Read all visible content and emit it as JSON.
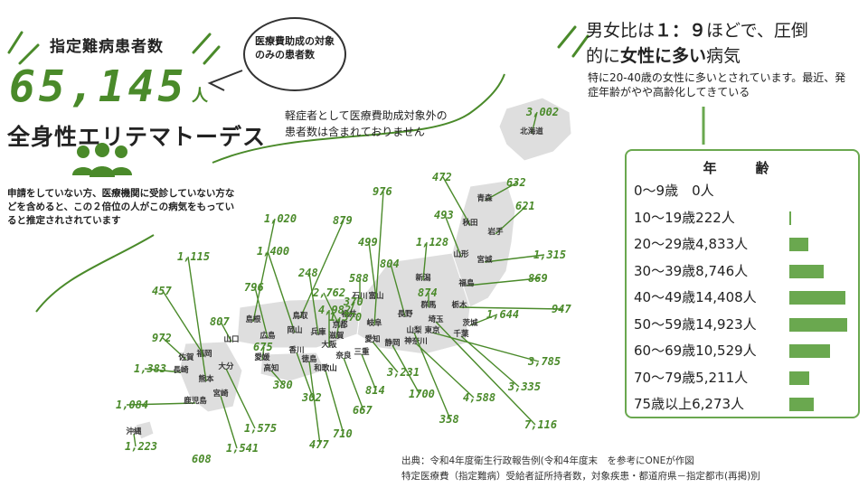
{
  "headline": {
    "patients_label": "指定難病患者数",
    "patients_number": "65,145",
    "patients_unit": "人",
    "disease_name": "全身性エリテマトーデス",
    "bubble": "医療費助成の対象のみの患者数",
    "mild_note": "軽症者として医療費助成対象外の患者数は含まれておりません",
    "unapplied_note_1": "申請をしていない方、医療機関に受診していない方などを含めると",
    "unapplied_note_em": "、この２倍位",
    "unapplied_note_2": "の人がこの病気をもっていると推定されされています",
    "people_icon": "people-icon"
  },
  "ratio": {
    "line1_a": "男女比は",
    "line1_b": "１：９",
    "line1_c": "ほどで、圧倒",
    "line2_a": "的に",
    "line2_b": "女性に多い",
    "line2_c": "病気",
    "sub": "特に20-40歳の女性に多いとされています。最近、発症年齢がやや高齢化してきている"
  },
  "source": {
    "line1": "出典：令和4年度衛生行政報告例(令和4年度末　を参考にONEが作図",
    "line2": "特定医療費（指定難病）受給者証所持者数，対象疾患・都道府県－指定都市(再掲)別"
  },
  "colors": {
    "accent": "#4a8a2a",
    "bar": "#6aa84f",
    "land": "#dddddd",
    "land_stroke": "#ffffff"
  },
  "chart_data": [
    {
      "type": "bar",
      "title": "年　齢",
      "categories": [
        "0〜9歳",
        "10〜19歳",
        "20〜29歳",
        "30〜39歳",
        "40〜49歳",
        "50〜59歳",
        "60〜69歳",
        "70〜79歳",
        "75歳以上"
      ],
      "labels": [
        "0〜9歳　0人",
        "10〜19歳222人",
        "20〜29歳4,833人",
        "30〜39歳8,746人",
        "40〜49歳14,408人",
        "50〜59歳14,923人",
        "60〜69歳10,529人",
        "70〜79歳5,211人",
        "75歳以上6,273人"
      ],
      "values": [
        0,
        222,
        4833,
        8746,
        14408,
        14923,
        10529,
        5211,
        6273
      ],
      "orientation": "horizontal"
    },
    {
      "type": "table",
      "title": "",
      "unit": "人",
      "prefectures": [
        {
          "name": "北海道",
          "value": "3,002"
        },
        {
          "name": "青森",
          "value": "632"
        },
        {
          "name": "岩手",
          "value": "621"
        },
        {
          "name": "秋田",
          "value": "472"
        },
        {
          "name": "宮城",
          "value": "1,315"
        },
        {
          "name": "山形",
          "value": "493"
        },
        {
          "name": "福島",
          "value": "869"
        },
        {
          "name": "茨城",
          "value": "1,644"
        },
        {
          "name": "栃木",
          "value": "947"
        },
        {
          "name": "群馬",
          "value": "874"
        },
        {
          "name": "埼玉",
          "value": "7,116"
        },
        {
          "name": "千葉",
          "value": "3,335"
        },
        {
          "name": "東京",
          "value": "3,785"
        },
        {
          "name": "神奈川",
          "value": "4,588"
        },
        {
          "name": "山梨",
          "value": "358"
        },
        {
          "name": "静岡",
          "value": "1700"
        },
        {
          "name": "長野",
          "value": "804"
        },
        {
          "name": "新潟",
          "value": "1,128"
        },
        {
          "name": "富山",
          "value": "499"
        },
        {
          "name": "石川",
          "value": "588"
        },
        {
          "name": "福井",
          "value": "370"
        },
        {
          "name": "岐阜",
          "value": "976"
        },
        {
          "name": "愛知",
          "value": "3,231"
        },
        {
          "name": "三重",
          "value": "814"
        },
        {
          "name": "滋賀",
          "value": "1,370"
        },
        {
          "name": "京都",
          "value": "2,762"
        },
        {
          "name": "大阪",
          "value": "4,982"
        },
        {
          "name": "兵庫",
          "value": "248"
        },
        {
          "name": "奈良",
          "value": "667"
        },
        {
          "name": "和歌山",
          "value": "710"
        },
        {
          "name": "鳥取",
          "value": "879"
        },
        {
          "name": "島根",
          "value": "1,020"
        },
        {
          "name": "岡山",
          "value": "1,400"
        },
        {
          "name": "広島",
          "value": "796"
        },
        {
          "name": "山口",
          "value": "807"
        },
        {
          "name": "徳島",
          "value": "477"
        },
        {
          "name": "香川",
          "value": "302"
        },
        {
          "name": "愛媛",
          "value": "675"
        },
        {
          "name": "高知",
          "value": "380"
        },
        {
          "name": "福岡",
          "value": "457"
        },
        {
          "name": "佐賀",
          "value": "972"
        },
        {
          "name": "長崎",
          "value": "1,383"
        },
        {
          "name": "熊本",
          "value": "1,115"
        },
        {
          "name": "大分",
          "value": "1,575"
        },
        {
          "name": "宮崎",
          "value": "1,541"
        },
        {
          "name": "鹿児島",
          "value": "1,084"
        },
        {
          "name": "沖縄",
          "value": "1,223"
        },
        {
          "name": "",
          "value": "608"
        }
      ]
    }
  ]
}
